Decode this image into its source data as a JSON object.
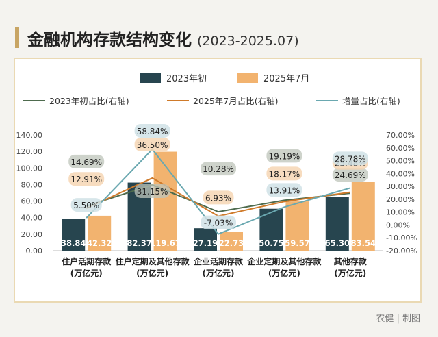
{
  "header": {
    "title": "金融机构存款结构变化",
    "subtitle": "(2023-2025.07)"
  },
  "credit": "农健 | 制图",
  "colors": {
    "bar_2023": "#27454f",
    "bar_2025": "#f2b36f",
    "line_2023": "#4e6b4e",
    "line_2025": "#cf7a2a",
    "line_incr": "#6aa8b0",
    "accent": "#c8a564"
  },
  "chart_data": {
    "type": "bar",
    "categories": [
      "住户活期存款\n(万亿元)",
      "住户定期及其他存款\n(万亿元)",
      "企业活期存款\n(万亿元)",
      "企业定期及其他存款\n(万亿元)",
      "其他存款\n(万亿元)"
    ],
    "series": [
      {
        "name": "2023年初",
        "values": [
          38.84,
          82.37,
          27.19,
          50.75,
          65.3
        ],
        "labels": [
          "38.84",
          "82.37",
          "27.19",
          "50.75",
          "65.30"
        ]
      },
      {
        "name": "2025年7月",
        "values": [
          42.32,
          119.67,
          22.73,
          59.57,
          83.54
        ],
        "labels": [
          "42.32",
          "119.67",
          "22.73",
          "59.57",
          "83.54"
        ]
      }
    ],
    "line_series": [
      {
        "name": "2023年初占比(右轴)",
        "values": [
          14.69,
          31.15,
          10.28,
          19.19,
          24.69
        ],
        "labels": [
          "14.69%",
          "31.15%",
          "10.28%",
          "19.19%",
          "24.69%"
        ]
      },
      {
        "name": "2025年7月占比(右轴)",
        "values": [
          12.91,
          36.5,
          6.93,
          18.17,
          25.48
        ],
        "labels": [
          "12.91%",
          "36.50%",
          "6.93%",
          "18.17%",
          "25.48%"
        ]
      },
      {
        "name": "增量占比(右轴)",
        "values": [
          5.5,
          58.84,
          -7.03,
          13.91,
          28.78
        ],
        "labels": [
          "5.50%",
          "58.84%",
          "-7.03%",
          "13.91%",
          "28.78%"
        ]
      }
    ],
    "y_left": {
      "ylim": [
        0,
        140
      ],
      "ticks": [
        "0.00",
        "20.00",
        "40.00",
        "60.00",
        "80.00",
        "100.00",
        "120.00",
        "140.00"
      ]
    },
    "y_right": {
      "ylim": [
        -20,
        70
      ],
      "ticks": [
        "-20.00%",
        "-10.00%",
        "0.00%",
        "10.00%",
        "20.00%",
        "30.00%",
        "40.00%",
        "50.00%",
        "60.00%",
        "70.00%"
      ]
    },
    "legend_placement": "top",
    "grid": false
  }
}
